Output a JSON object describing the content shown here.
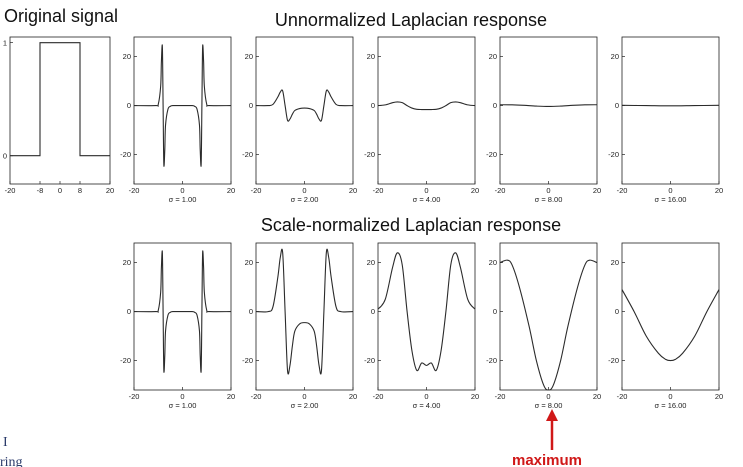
{
  "titles": {
    "original": "Original signal",
    "unnormalized": "Unnormalized Laplacian response",
    "normalized": "Scale-normalized Laplacian response"
  },
  "annotation": {
    "text": "maximum",
    "color": "#d01818"
  },
  "corner_text": "ring",
  "chart_data": [
    {
      "type": "line",
      "title": "Original signal",
      "xlabel": "",
      "xlim": [
        -20,
        20
      ],
      "ylim": [
        -0.25,
        1.05
      ],
      "xticks": [
        -20,
        -8,
        0,
        8,
        20
      ],
      "yticks": [
        0,
        1
      ],
      "series": [
        {
          "x": [
            -20,
            -8,
            -8,
            8,
            8,
            20
          ],
          "y": [
            0,
            0,
            1,
            1,
            0,
            0
          ]
        }
      ]
    },
    {
      "type": "line",
      "group": "Unnormalized Laplacian response",
      "xlabel": "σ = 1.00",
      "sigma": 1,
      "normalized": false,
      "xlim": [
        -20,
        20
      ],
      "ylim": [
        -32,
        28
      ],
      "xticks": [
        -20,
        0,
        20
      ],
      "yticks": [
        20,
        0,
        -20
      ],
      "series": [
        {
          "x": [
            -20,
            -11,
            -10,
            -9,
            -8.7,
            -8.3,
            -8,
            -7.7,
            -7.3,
            -7,
            -6,
            -5,
            -4,
            0,
            4,
            5,
            6,
            7,
            7.3,
            7.7,
            8,
            8.3,
            8.7,
            9,
            10,
            11,
            20
          ],
          "y": [
            0,
            0,
            0.5,
            8,
            18,
            24,
            0,
            -24,
            -18,
            -8,
            -1.5,
            -0.3,
            0,
            0,
            0,
            -0.3,
            -1.5,
            -8,
            -18,
            -24,
            0,
            24,
            18,
            8,
            0.5,
            0,
            0
          ]
        }
      ]
    },
    {
      "type": "line",
      "group": "Unnormalized Laplacian response",
      "xlabel": "σ = 2.00",
      "sigma": 2,
      "normalized": false,
      "xlim": [
        -20,
        20
      ],
      "ylim": [
        -32,
        28
      ],
      "xticks": [
        -20,
        0,
        20
      ],
      "yticks": [
        20,
        0,
        -20
      ],
      "series": [
        {
          "x": [
            -20,
            -15,
            -13,
            -11,
            -10,
            -9,
            -8,
            -7,
            -6,
            -5,
            -4,
            -2,
            0,
            2,
            4,
            5,
            6,
            7,
            8,
            9,
            10,
            11,
            13,
            15,
            20
          ],
          "y": [
            0,
            0,
            0.5,
            3.5,
            5.5,
            6,
            0,
            -6,
            -5.5,
            -3.5,
            -2,
            -1.2,
            -1,
            -1.2,
            -2,
            -3.5,
            -5.5,
            -6,
            0,
            6,
            5.5,
            3.5,
            0.5,
            0,
            0
          ]
        }
      ]
    },
    {
      "type": "line",
      "group": "Unnormalized Laplacian response",
      "xlabel": "σ = 4.00",
      "sigma": 4,
      "normalized": false,
      "xlim": [
        -20,
        20
      ],
      "ylim": [
        -32,
        28
      ],
      "xticks": [
        -20,
        0,
        20
      ],
      "yticks": [
        20,
        0,
        -20
      ],
      "series": [
        {
          "x": [
            -20,
            -17,
            -14,
            -12,
            -10,
            -8,
            -6,
            -4,
            -2,
            0,
            2,
            4,
            6,
            8,
            10,
            12,
            14,
            17,
            20
          ],
          "y": [
            0,
            0.3,
            1.2,
            1.5,
            1.2,
            0,
            -1,
            -1.5,
            -1.6,
            -1.6,
            -1.6,
            -1.5,
            -1,
            0,
            1.2,
            1.5,
            1.2,
            0.3,
            0
          ]
        }
      ]
    },
    {
      "type": "line",
      "group": "Unnormalized Laplacian response",
      "xlabel": "σ = 8.00",
      "sigma": 8,
      "normalized": false,
      "xlim": [
        -20,
        20
      ],
      "ylim": [
        -32,
        28
      ],
      "xticks": [
        -20,
        0,
        20
      ],
      "yticks": [
        20,
        0,
        -20
      ],
      "series": [
        {
          "x": [
            -20,
            -15,
            -10,
            -5,
            0,
            5,
            10,
            15,
            20
          ],
          "y": [
            0.35,
            0.3,
            0.1,
            -0.2,
            -0.35,
            -0.2,
            0.1,
            0.3,
            0.35
          ]
        }
      ]
    },
    {
      "type": "line",
      "group": "Unnormalized Laplacian response",
      "xlabel": "σ = 16.00",
      "sigma": 16,
      "normalized": false,
      "xlim": [
        -20,
        20
      ],
      "ylim": [
        -32,
        28
      ],
      "xticks": [
        -20,
        0,
        20
      ],
      "yticks": [
        20,
        0,
        -20
      ],
      "series": [
        {
          "x": [
            -20,
            -10,
            0,
            10,
            20
          ],
          "y": [
            0.1,
            0,
            -0.1,
            0,
            0.1
          ]
        }
      ]
    },
    {
      "type": "line",
      "group": "Scale-normalized Laplacian response",
      "xlabel": "σ = 1.00",
      "sigma": 1,
      "normalized": true,
      "xlim": [
        -20,
        20
      ],
      "ylim": [
        -32,
        28
      ],
      "xticks": [
        -20,
        0,
        20
      ],
      "yticks": [
        20,
        0,
        -20
      ],
      "series": [
        {
          "x": [
            -20,
            -11,
            -10,
            -9,
            -8.7,
            -8.3,
            -8,
            -7.7,
            -7.3,
            -7,
            -6,
            -5,
            -4,
            0,
            4,
            5,
            6,
            7,
            7.3,
            7.7,
            8,
            8.3,
            8.7,
            9,
            10,
            11,
            20
          ],
          "y": [
            0,
            0,
            0.5,
            8,
            18,
            24,
            0,
            -24,
            -18,
            -8,
            -1.5,
            -0.3,
            0,
            0,
            0,
            -0.3,
            -1.5,
            -8,
            -18,
            -24,
            0,
            24,
            18,
            8,
            0.5,
            0,
            0
          ]
        }
      ]
    },
    {
      "type": "line",
      "group": "Scale-normalized Laplacian response",
      "xlabel": "σ = 2.00",
      "sigma": 2,
      "normalized": true,
      "xlim": [
        -20,
        20
      ],
      "ylim": [
        -32,
        28
      ],
      "xticks": [
        -20,
        0,
        20
      ],
      "yticks": [
        20,
        0,
        -20
      ],
      "series": [
        {
          "x": [
            -20,
            -15,
            -13,
            -11,
            -10,
            -9,
            -8,
            -7,
            -6,
            -5,
            -4,
            -2,
            0,
            2,
            4,
            5,
            6,
            7,
            8,
            9,
            10,
            11,
            13,
            15,
            20
          ],
          "y": [
            0,
            0,
            2,
            14,
            22,
            24,
            0,
            -24,
            -22,
            -14,
            -8,
            -5,
            -4.5,
            -5,
            -8,
            -14,
            -22,
            -24,
            0,
            24,
            22,
            14,
            2,
            0,
            0
          ]
        }
      ]
    },
    {
      "type": "line",
      "group": "Scale-normalized Laplacian response",
      "xlabel": "σ = 4.00",
      "sigma": 4,
      "normalized": true,
      "xlim": [
        -20,
        20
      ],
      "ylim": [
        -32,
        28
      ],
      "xticks": [
        -20,
        0,
        20
      ],
      "yticks": [
        20,
        0,
        -20
      ],
      "series": [
        {
          "x": [
            -20,
            -17,
            -14,
            -12,
            -10,
            -8,
            -6,
            -4,
            -2,
            0,
            2,
            4,
            6,
            8,
            10,
            12,
            14,
            17,
            20
          ],
          "y": [
            1,
            5,
            18,
            24,
            19,
            0,
            -16,
            -24,
            -21,
            -22,
            -21,
            -24,
            -16,
            0,
            19,
            24,
            18,
            5,
            1
          ]
        }
      ]
    },
    {
      "type": "line",
      "group": "Scale-normalized Laplacian response",
      "xlabel": "σ = 8.00",
      "sigma": 8,
      "normalized": true,
      "xlim": [
        -20,
        20
      ],
      "ylim": [
        -32,
        28
      ],
      "xticks": [
        -20,
        0,
        20
      ],
      "yticks": [
        20,
        0,
        -20
      ],
      "series": [
        {
          "x": [
            -20,
            -17,
            -15,
            -12,
            -8,
            -5,
            -2,
            0,
            2,
            5,
            8,
            12,
            15,
            17,
            20
          ],
          "y": [
            20,
            21,
            19,
            10,
            -6,
            -20,
            -30,
            -32,
            -30,
            -20,
            -6,
            10,
            19,
            21,
            20
          ]
        }
      ]
    },
    {
      "type": "line",
      "group": "Scale-normalized Laplacian response",
      "xlabel": "σ = 16.00",
      "sigma": 16,
      "normalized": true,
      "xlim": [
        -20,
        20
      ],
      "ylim": [
        -32,
        28
      ],
      "xticks": [
        -20,
        0,
        20
      ],
      "yticks": [
        20,
        0,
        -20
      ],
      "series": [
        {
          "x": [
            -20,
            -15,
            -10,
            -5,
            -2,
            0,
            2,
            5,
            10,
            15,
            20
          ],
          "y": [
            9,
            0,
            -10,
            -17,
            -19.5,
            -20,
            -19.5,
            -17,
            -10,
            0,
            9
          ]
        }
      ]
    }
  ]
}
